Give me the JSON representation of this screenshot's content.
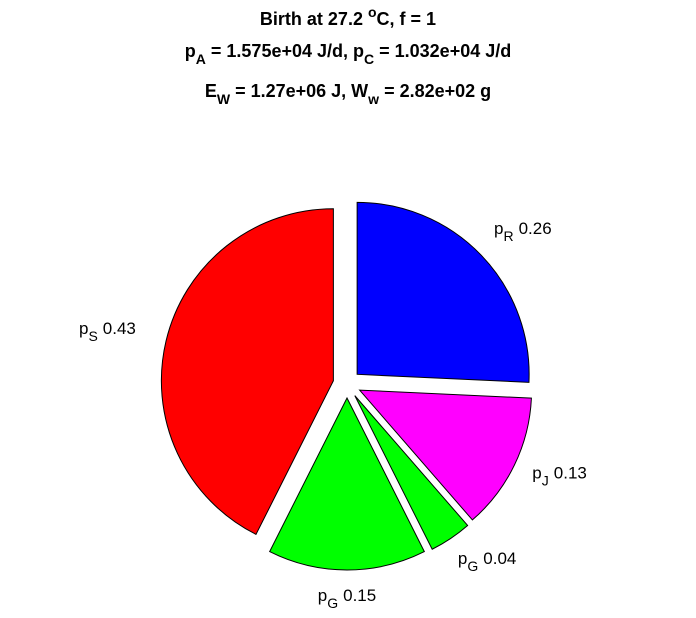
{
  "chart_data": {
    "type": "pie",
    "title": [
      [
        {
          "text": "Birth at 27.2 "
        },
        {
          "text": "o",
          "sup": true
        },
        {
          "text": "C, f = 1"
        }
      ],
      [
        {
          "text": "p"
        },
        {
          "text": "A",
          "sub": true
        },
        {
          "text": " = 1.575e+04 J/d, p"
        },
        {
          "text": "C",
          "sub": true
        },
        {
          "text": " = 1.032e+04 J/d"
        }
      ],
      [
        {
          "text": "E"
        },
        {
          "text": "W",
          "sub": true
        },
        {
          "text": " = 1.27e+06 J, W"
        },
        {
          "text": "w",
          "sub": true
        },
        {
          "text": " = 2.82e+02 g"
        }
      ]
    ],
    "slices": [
      {
        "symbol": "p",
        "sub": "R",
        "value": 0.26,
        "color": "#0000ff"
      },
      {
        "symbol": "p",
        "sub": "J",
        "value": 0.13,
        "color": "#ff00ff"
      },
      {
        "symbol": "p",
        "sub": "G",
        "value": 0.04,
        "color": "#00ff00"
      },
      {
        "symbol": "p",
        "sub": "G",
        "value": 0.15,
        "color": "#00ff00"
      },
      {
        "symbol": "p",
        "sub": "S",
        "value": 0.43,
        "color": "#ff0000"
      }
    ],
    "exploded": true
  }
}
